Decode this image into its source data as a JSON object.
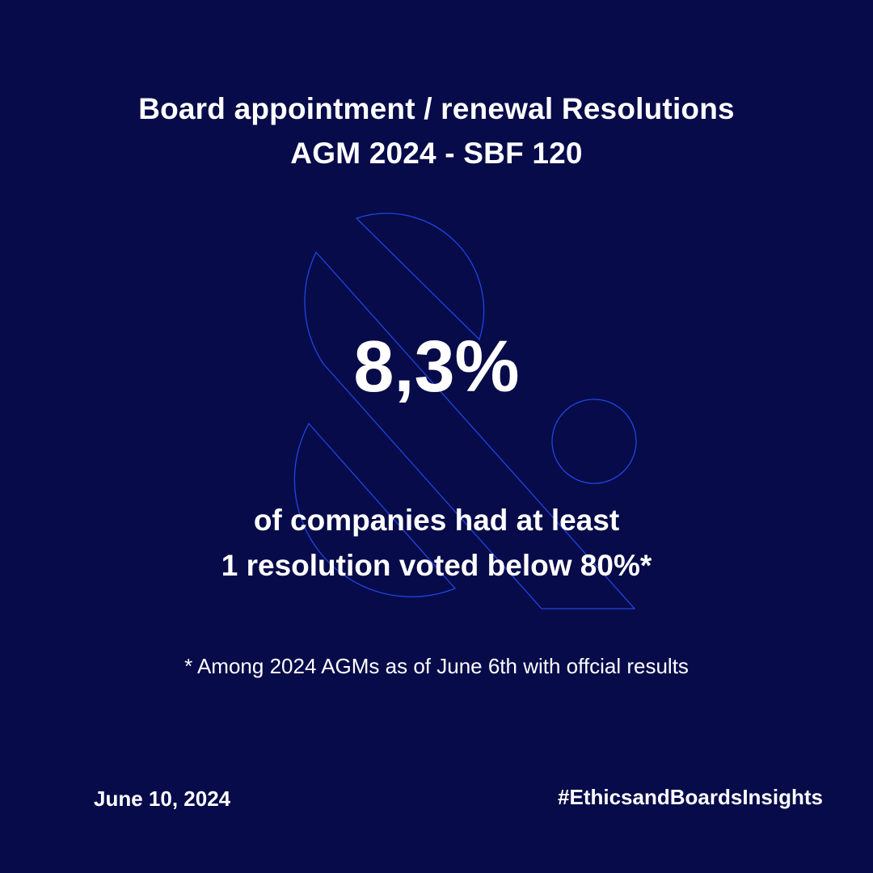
{
  "colors": {
    "background": "#070b4a",
    "text": "#ffffff",
    "outline": "#1f45e0"
  },
  "header": {
    "title_line1": "Board appointment / renewal Resolutions",
    "title_line2": "AGM 2024 - SBF 120"
  },
  "stat": {
    "value": "8,3%"
  },
  "description": {
    "line1": "of companies had at least",
    "line2": "1 resolution voted below 80%*"
  },
  "footnote": "* Among 2024 AGMs as of June 6th with offcial results",
  "footer": {
    "date": "June 10, 2024",
    "hashtag": "#EthicsandBoardsInsights"
  },
  "decoration": {
    "icon": "ampersand-outline-icon"
  }
}
